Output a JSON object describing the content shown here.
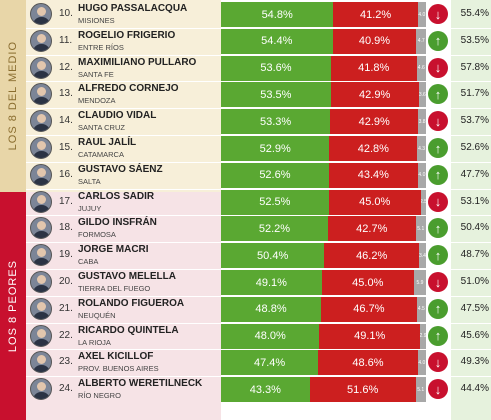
{
  "groups": [
    {
      "label": "LOS 8 DEL MEDIO"
    },
    {
      "label": "LOS 8 PEORES"
    }
  ],
  "colors": {
    "positive": "#5aa832",
    "negative": "#cc1f1f",
    "ns": "#a8a8a8",
    "up": "#4a9d2e",
    "down": "#c8102e"
  },
  "rows": [
    {
      "rank": "10.",
      "name": "HUGO PASSALACQUA",
      "province": "MISIONES",
      "pos": "54.8%",
      "pos_value": 54.8,
      "neg": "41.2%",
      "neg_value": 41.2,
      "ns": "4.0",
      "ns_value": 4.0,
      "trend": "down",
      "score": "55.4%"
    },
    {
      "rank": "11.",
      "name": "ROGELIO FRIGERIO",
      "province": "ENTRE RÍOS",
      "pos": "54.4%",
      "pos_value": 54.4,
      "neg": "40.9%",
      "neg_value": 40.9,
      "ns": "4.7",
      "ns_value": 4.7,
      "trend": "up",
      "score": "53.5%"
    },
    {
      "rank": "12.",
      "name": "MAXIMILIANO PULLARO",
      "province": "SANTA FE",
      "pos": "53.6%",
      "pos_value": 53.6,
      "neg": "41.8%",
      "neg_value": 41.8,
      "ns": "4.6",
      "ns_value": 4.6,
      "trend": "down",
      "score": "57.8%"
    },
    {
      "rank": "13.",
      "name": "ALFREDO CORNEJO",
      "province": "MENDOZA",
      "pos": "53.5%",
      "pos_value": 53.5,
      "neg": "42.9%",
      "neg_value": 42.9,
      "ns": "3.6",
      "ns_value": 3.6,
      "trend": "up",
      "score": "51.7%"
    },
    {
      "rank": "14.",
      "name": "CLAUDIO VIDAL",
      "province": "SANTA CRUZ",
      "pos": "53.3%",
      "pos_value": 53.3,
      "neg": "42.9%",
      "neg_value": 42.9,
      "ns": "3.8",
      "ns_value": 3.8,
      "trend": "down",
      "score": "53.7%"
    },
    {
      "rank": "15.",
      "name": "RAUL JALÍL",
      "province": "CATAMARCA",
      "pos": "52.9%",
      "pos_value": 52.9,
      "neg": "42.8%",
      "neg_value": 42.8,
      "ns": "4.3",
      "ns_value": 4.3,
      "trend": "up",
      "score": "52.6%"
    },
    {
      "rank": "16.",
      "name": "GUSTAVO SÁENZ",
      "province": "SALTA",
      "pos": "52.6%",
      "pos_value": 52.6,
      "neg": "43.4%",
      "neg_value": 43.4,
      "ns": "4.0",
      "ns_value": 4.0,
      "trend": "up",
      "score": "47.7%"
    },
    {
      "rank": "17.",
      "name": "CARLOS SADIR",
      "province": "JUJUY",
      "pos": "52.5%",
      "pos_value": 52.5,
      "neg": "45.0%",
      "neg_value": 45.0,
      "ns": "2.5",
      "ns_value": 2.5,
      "trend": "down",
      "score": "53.1%"
    },
    {
      "rank": "18.",
      "name": "GILDO INSFRÁN",
      "province": "FORMOSA",
      "pos": "52.2%",
      "pos_value": 52.2,
      "neg": "42.7%",
      "neg_value": 42.7,
      "ns": "5.1",
      "ns_value": 5.1,
      "trend": "up",
      "score": "50.4%"
    },
    {
      "rank": "19.",
      "name": "JORGE MACRI",
      "province": "CABA",
      "pos": "50.4%",
      "pos_value": 50.4,
      "neg": "46.2%",
      "neg_value": 46.2,
      "ns": "3.4",
      "ns_value": 3.4,
      "trend": "up",
      "score": "48.7%"
    },
    {
      "rank": "20.",
      "name": "GUSTAVO MELELLA",
      "province": "TIERRA DEL FUEGO",
      "pos": "49.1%",
      "pos_value": 49.1,
      "neg": "45.0%",
      "neg_value": 45.0,
      "ns": "5.9",
      "ns_value": 5.9,
      "trend": "down",
      "score": "51.0%"
    },
    {
      "rank": "21.",
      "name": "ROLANDO FIGUEROA",
      "province": "NEUQUÉN",
      "pos": "48.8%",
      "pos_value": 48.8,
      "neg": "46.7%",
      "neg_value": 46.7,
      "ns": "4.5",
      "ns_value": 4.5,
      "trend": "up",
      "score": "47.5%"
    },
    {
      "rank": "22.",
      "name": "RICARDO QUINTELA",
      "province": "LA RIOJA",
      "pos": "48.0%",
      "pos_value": 48.0,
      "neg": "49.1%",
      "neg_value": 49.1,
      "ns": "2.9",
      "ns_value": 2.9,
      "trend": "up",
      "score": "45.6%"
    },
    {
      "rank": "23.",
      "name": "AXEL KICILLOF",
      "province": "PROV. BUENOS AIRES",
      "pos": "47.4%",
      "pos_value": 47.4,
      "neg": "48.6%",
      "neg_value": 48.6,
      "ns": "4.0",
      "ns_value": 4.0,
      "trend": "down",
      "score": "49.3%"
    },
    {
      "rank": "24.",
      "name": "ALBERTO WERETILNECK",
      "province": "RÍO NEGRO",
      "pos": "43.3%",
      "pos_value": 43.3,
      "neg": "51.6%",
      "neg_value": 51.6,
      "ns": "5.1",
      "ns_value": 5.1,
      "trend": "down",
      "score": "44.4%"
    }
  ]
}
